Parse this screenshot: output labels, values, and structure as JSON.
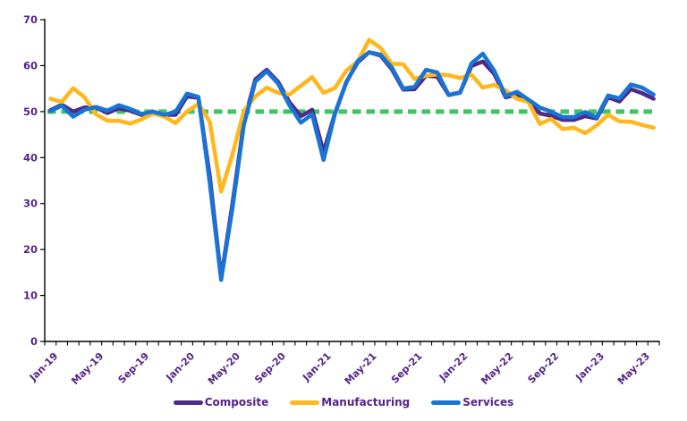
{
  "chart_data": {
    "type": "line",
    "title": "",
    "xlabel": "",
    "ylabel": "",
    "ylim": [
      0,
      70
    ],
    "ytick_step": 10,
    "yticks": [
      0,
      10,
      20,
      30,
      40,
      50,
      60,
      70
    ],
    "xtick_label_every": 4,
    "xtick_labels_shown": [
      "Jan-19",
      "May-19",
      "Sep-19",
      "Jan-20",
      "May-20",
      "Sep-20",
      "Jan-21",
      "May-21",
      "Sep-21",
      "Jan-22",
      "May-22",
      "Sep-22",
      "Jan-23",
      "May-23"
    ],
    "grid": false,
    "legend_position": "bottom",
    "axis_text_color": "#542488",
    "axis_line_color": "#000000",
    "x": [
      "Jan-19",
      "Feb-19",
      "Mar-19",
      "Apr-19",
      "May-19",
      "Jun-19",
      "Jul-19",
      "Aug-19",
      "Sep-19",
      "Oct-19",
      "Nov-19",
      "Dec-19",
      "Jan-20",
      "Feb-20",
      "Mar-20",
      "Apr-20",
      "May-20",
      "Jun-20",
      "Jul-20",
      "Aug-20",
      "Sep-20",
      "Oct-20",
      "Nov-20",
      "Dec-20",
      "Jan-21",
      "Feb-21",
      "Mar-21",
      "Apr-21",
      "May-21",
      "Jun-21",
      "Jul-21",
      "Aug-21",
      "Sep-21",
      "Oct-21",
      "Nov-21",
      "Dec-21",
      "Jan-22",
      "Feb-22",
      "Mar-22",
      "Apr-22",
      "May-22",
      "Jun-22",
      "Jul-22",
      "Aug-22",
      "Sep-22",
      "Oct-22",
      "Nov-22",
      "Dec-22",
      "Jan-23",
      "Feb-23",
      "Mar-23",
      "Apr-23",
      "May-23",
      "Jun-23"
    ],
    "series": [
      {
        "name": "Composite",
        "color": "#4D2B87",
        "values": [
          50.3,
          51.5,
          50.0,
          50.9,
          50.9,
          49.7,
          50.7,
          50.2,
          49.3,
          50.0,
          49.3,
          49.3,
          53.3,
          53.0,
          36.0,
          13.8,
          30.0,
          47.7,
          57.0,
          59.1,
          56.5,
          52.1,
          49.0,
          50.4,
          41.2,
          49.6,
          56.4,
          60.7,
          62.9,
          62.2,
          59.2,
          54.8,
          54.9,
          57.8,
          57.6,
          53.6,
          54.2,
          59.9,
          60.9,
          58.2,
          53.1,
          53.7,
          52.1,
          49.6,
          49.1,
          48.2,
          48.2,
          49.0,
          48.5,
          53.1,
          52.2,
          54.9,
          54.0,
          52.8
        ]
      },
      {
        "name": "Manufacturing",
        "color": "#FFB71C",
        "values": [
          52.8,
          52.1,
          55.1,
          53.1,
          49.4,
          48.0,
          48.0,
          47.4,
          48.3,
          49.6,
          48.9,
          47.5,
          50.0,
          51.7,
          47.8,
          32.6,
          40.7,
          50.1,
          53.3,
          55.2,
          54.1,
          53.7,
          55.6,
          57.5,
          54.1,
          55.1,
          58.9,
          60.9,
          65.6,
          63.9,
          60.4,
          60.3,
          57.1,
          57.8,
          58.1,
          57.9,
          57.3,
          58.0,
          55.2,
          55.8,
          54.6,
          52.8,
          52.1,
          47.3,
          48.4,
          46.2,
          46.5,
          45.3,
          47.0,
          49.3,
          47.9,
          47.8,
          47.1,
          46.5
        ]
      },
      {
        "name": "Services",
        "color": "#1874D6",
        "values": [
          50.1,
          51.3,
          48.9,
          50.4,
          51.0,
          50.2,
          51.4,
          50.6,
          49.5,
          50.0,
          49.3,
          50.0,
          53.9,
          53.2,
          34.5,
          13.4,
          29.0,
          47.1,
          56.5,
          58.8,
          56.1,
          51.4,
          47.6,
          49.4,
          39.5,
          49.5,
          56.3,
          61.0,
          62.9,
          62.4,
          59.6,
          55.0,
          55.4,
          59.1,
          58.5,
          53.6,
          54.1,
          60.5,
          62.6,
          58.9,
          53.4,
          54.3,
          52.6,
          50.9,
          50.0,
          48.8,
          48.8,
          49.9,
          48.7,
          53.5,
          52.9,
          55.9,
          55.2,
          53.7
        ]
      }
    ],
    "reference_line": {
      "value": 50,
      "color": "#3DC463",
      "style": "dashed"
    }
  },
  "legend": {
    "items": [
      {
        "label": "Composite"
      },
      {
        "label": "Manufacturing"
      },
      {
        "label": "Services"
      }
    ]
  }
}
